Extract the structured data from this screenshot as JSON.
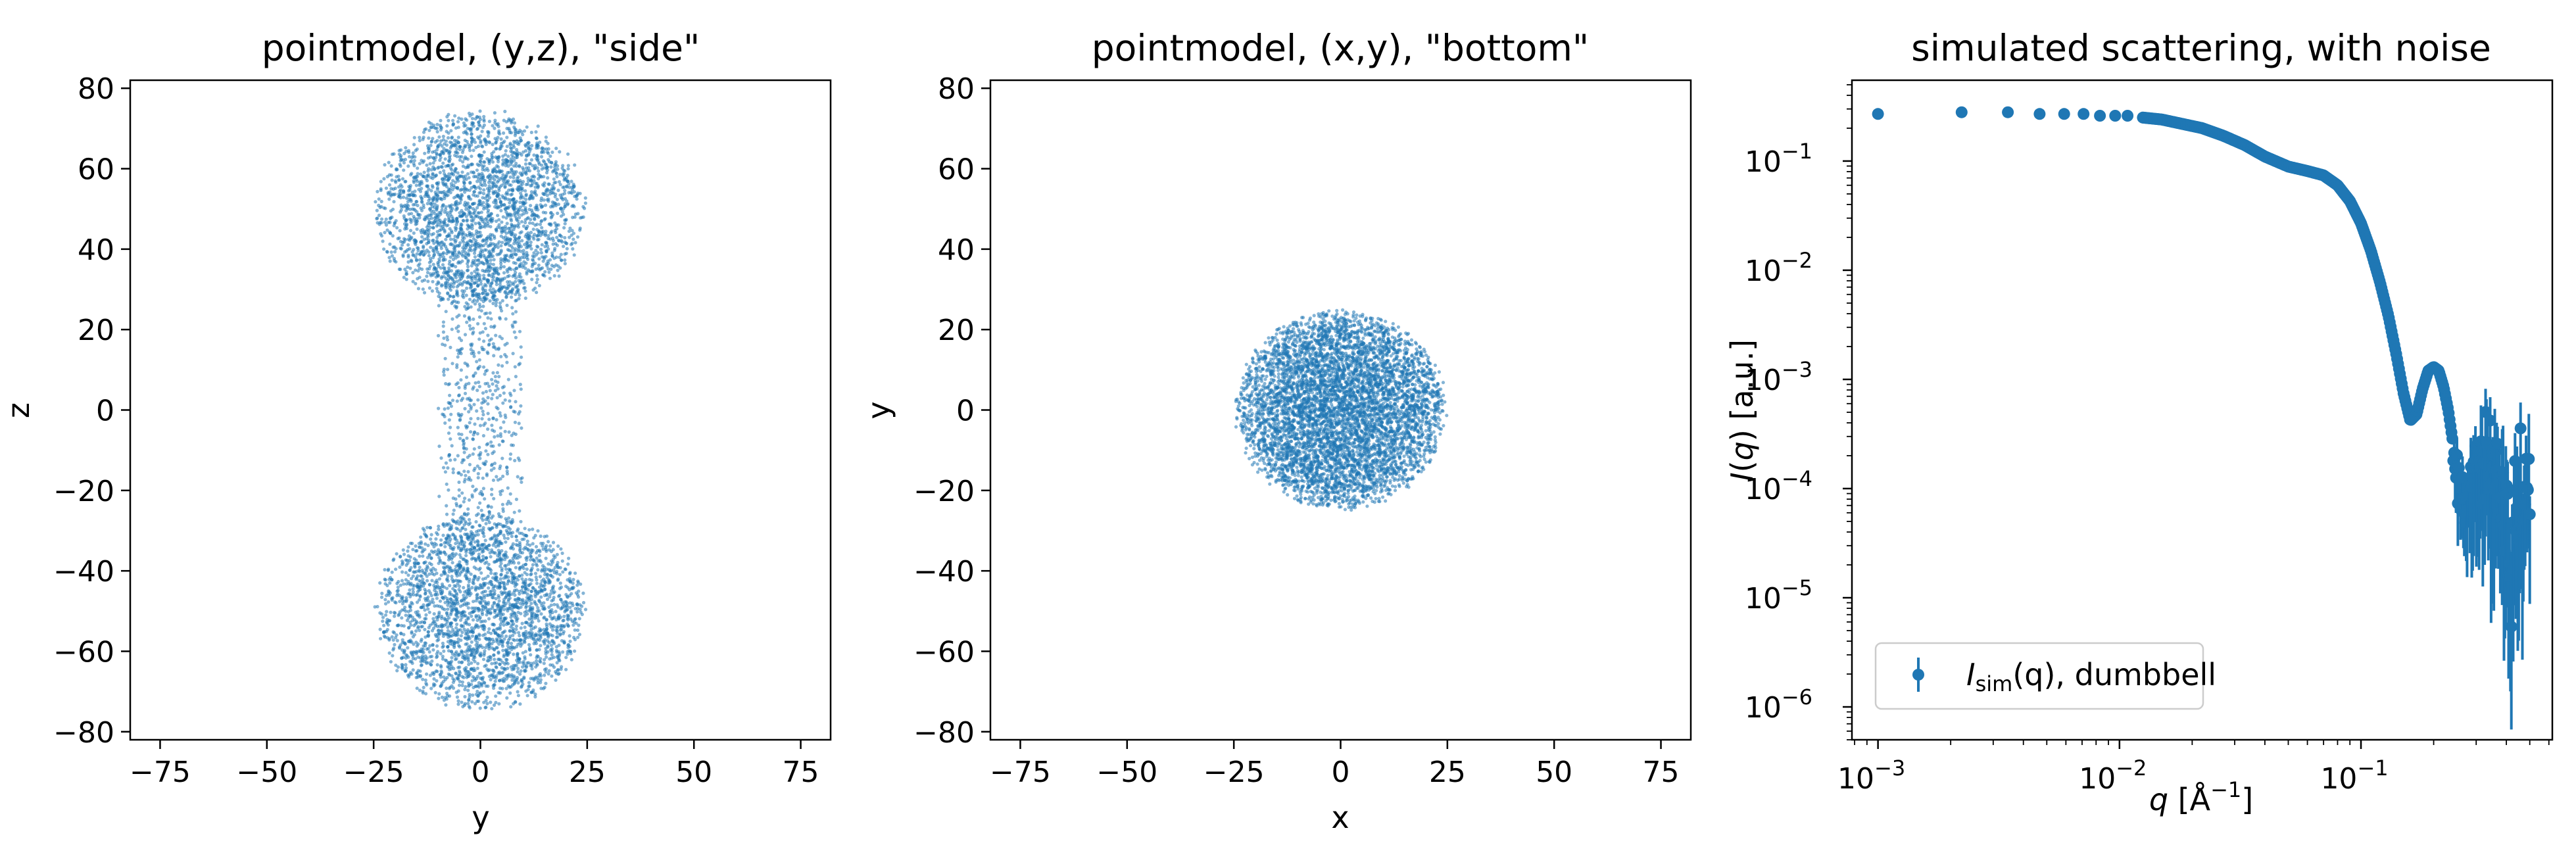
{
  "colors": {
    "series": "#1f77b4",
    "axes": "#000000",
    "background": "#ffffff"
  },
  "chart_data": [
    {
      "type": "scatter",
      "title": "pointmodel, (y,z), \"side\"",
      "xlabel": "y",
      "ylabel": "z",
      "xlim": [
        -82,
        82
      ],
      "ylim": [
        -82,
        82
      ],
      "xticks": [
        -75,
        -50,
        -25,
        0,
        25,
        50,
        75
      ],
      "xtick_labels": [
        "−75",
        "−50",
        "−25",
        "0",
        "25",
        "50",
        "75"
      ],
      "yticks": [
        -80,
        -60,
        -40,
        -20,
        0,
        20,
        40,
        60,
        80
      ],
      "ytick_labels": [
        "−80",
        "−60",
        "−40",
        "−20",
        "0",
        "20",
        "40",
        "60",
        "80"
      ],
      "shapes": [
        {
          "kind": "sphere",
          "center_a": 0,
          "center_b": 50,
          "radius": 25,
          "points": 2600
        },
        {
          "kind": "sphere",
          "center_a": 0,
          "center_b": -50,
          "radius": 25,
          "points": 2600
        },
        {
          "kind": "rod",
          "radius": 10,
          "b_min": -35,
          "b_max": 35,
          "points": 650
        }
      ]
    },
    {
      "type": "scatter",
      "title": "pointmodel, (x,y), \"bottom\"",
      "xlabel": "x",
      "ylabel": "y",
      "xlim": [
        -82,
        82
      ],
      "ylim": [
        -82,
        82
      ],
      "xticks": [
        -75,
        -50,
        -25,
        0,
        25,
        50,
        75
      ],
      "xtick_labels": [
        "−75",
        "−50",
        "−25",
        "0",
        "25",
        "50",
        "75"
      ],
      "yticks": [
        -80,
        -60,
        -40,
        -20,
        0,
        20,
        40,
        60,
        80
      ],
      "ytick_labels": [
        "−80",
        "−60",
        "−40",
        "−20",
        "0",
        "20",
        "40",
        "60",
        "80"
      ],
      "shapes": [
        {
          "kind": "projected-sphere",
          "center_a": 0,
          "center_b": 0,
          "radius": 25,
          "points": 5800
        }
      ]
    },
    {
      "type": "line",
      "title": "simulated scattering, with noise",
      "xlabel_pre": "q",
      "xlabel_post": " [Å",
      "xlabel_sup": "−1",
      "xlabel_end": "]",
      "ylabel_pre": "I",
      "ylabel_mid": "(",
      "ylabel_q": "q",
      "ylabel_post": ") [a.u.]",
      "xscale": "log",
      "yscale": "log",
      "xlim": [
        0.00078,
        0.62
      ],
      "ylim": [
        5e-07,
        0.55
      ],
      "xticks": [
        0.001,
        0.01,
        0.1
      ],
      "xtick_labels": [
        [
          "10",
          "−3"
        ],
        [
          "10",
          "−2"
        ],
        [
          "10",
          "−1"
        ]
      ],
      "yticks": [
        1e-06,
        1e-05,
        0.0001,
        0.001,
        0.01,
        0.1
      ],
      "ytick_labels": [
        [
          "10",
          "−6"
        ],
        [
          "10",
          "−5"
        ],
        [
          "10",
          "−4"
        ],
        [
          "10",
          "−3"
        ],
        [
          "10",
          "−2"
        ],
        [
          "10",
          "−1"
        ]
      ],
      "legend": {
        "placement": "lower-left",
        "entry_main": "I",
        "entry_sub": "sim",
        "entry_rest": "(q), dumbbell"
      },
      "series": [
        {
          "name": "Isim(q), dumbbell",
          "x": [
            0.001,
            0.00222,
            0.00345,
            0.00467,
            0.0059,
            0.0071,
            0.0083,
            0.0096,
            0.0108,
            0.0125,
            0.015,
            0.018,
            0.022,
            0.027,
            0.033,
            0.04,
            0.05,
            0.06,
            0.07,
            0.08,
            0.09,
            0.1,
            0.11,
            0.12,
            0.13,
            0.14,
            0.15,
            0.16,
            0.17,
            0.18,
            0.19,
            0.2,
            0.21,
            0.22,
            0.23,
            0.24,
            0.26,
            0.28,
            0.3,
            0.32,
            0.34,
            0.36,
            0.38,
            0.4,
            0.42,
            0.44,
            0.46,
            0.48,
            0.5
          ],
          "y": [
            0.27,
            0.28,
            0.28,
            0.27,
            0.27,
            0.27,
            0.26,
            0.26,
            0.26,
            0.25,
            0.24,
            0.22,
            0.2,
            0.17,
            0.14,
            0.11,
            0.089,
            0.081,
            0.074,
            0.06,
            0.043,
            0.027,
            0.015,
            0.0077,
            0.0038,
            0.0017,
            0.00075,
            0.00042,
            0.00048,
            0.00082,
            0.0012,
            0.0013,
            0.0012,
            0.00085,
            0.00052,
            0.00027,
            0.0001,
            9e-05,
            0.00014,
            0.00018,
            0.0002,
            0.00015,
            9e-05,
            4.5e-05,
            2.5e-05,
            4e-05,
            8e-05,
            0.00012,
            0.0001
          ],
          "yerr_low": [
            0,
            0,
            0,
            0,
            0,
            0,
            0,
            0,
            0,
            0,
            0,
            0,
            0,
            0,
            0,
            0,
            0,
            0,
            0,
            0,
            0,
            0,
            0,
            0,
            0,
            0,
            0,
            0,
            0,
            0,
            0,
            0,
            0,
            0,
            0,
            4e-05,
            7e-05,
            8e-05,
            0.00011,
            0.00014,
            0.00018,
            0.00014,
            8.8e-05,
            4.4e-05,
            2.48e-05,
            3.98e-05,
            7.98e-05,
            0.000119,
            9.95e-05
          ],
          "yerr_high": [
            0,
            0,
            0,
            0,
            0,
            0,
            0,
            0,
            0,
            0,
            0,
            0,
            0,
            0,
            0,
            0,
            0,
            0,
            0,
            0,
            0,
            0,
            0,
            0,
            0,
            0,
            0,
            0,
            0,
            0,
            0,
            0,
            0,
            0,
            0,
            4e-05,
            7e-05,
            8e-05,
            8e-05,
            9e-05,
            0.0001,
            9e-05,
            7e-05,
            6e-05,
            5e-05,
            5e-05,
            7e-05,
            8e-05,
            8e-05
          ]
        }
      ]
    }
  ]
}
